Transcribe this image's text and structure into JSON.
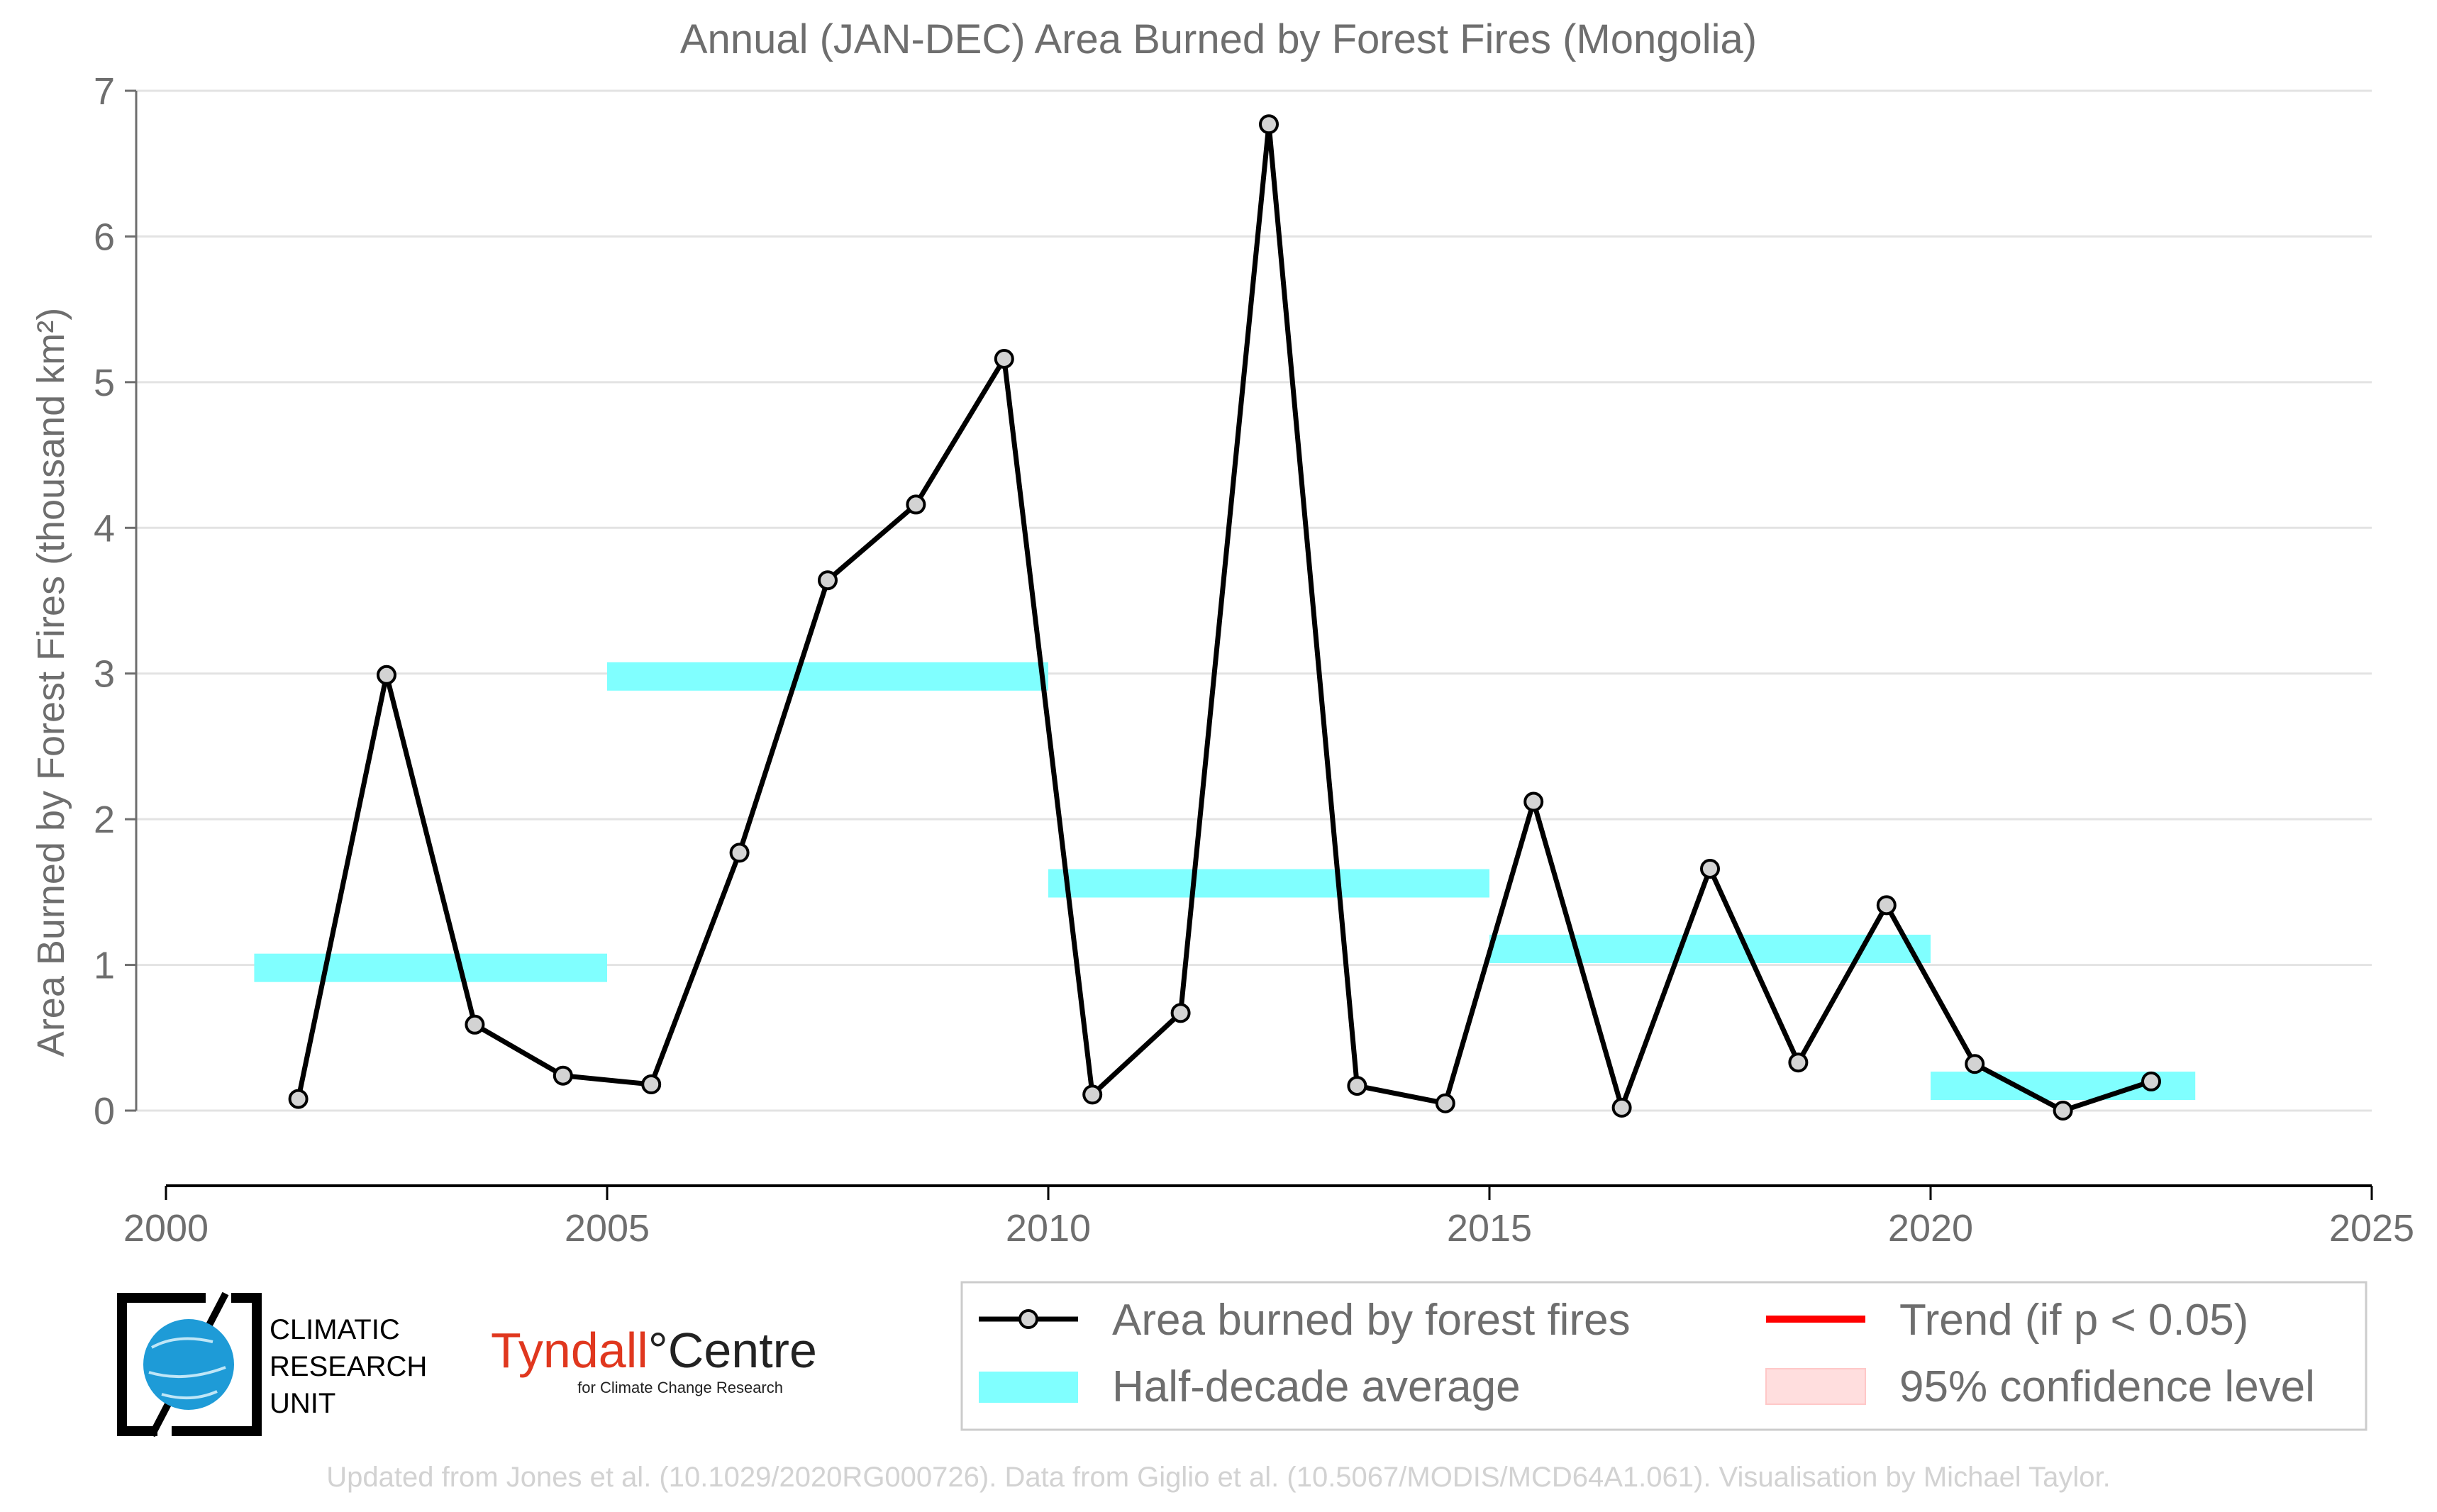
{
  "chart_data": {
    "type": "line",
    "title": "Annual (JAN-DEC) Area Burned by Forest Fires (Mongolia)",
    "xlabel": "",
    "ylabel": "Area Burned by Forest Fires (thousand km²)",
    "xlim": [
      2000,
      2025
    ],
    "ylim": [
      -0.5,
      7
    ],
    "xticks": [
      2000,
      2005,
      2010,
      2015,
      2020,
      2025
    ],
    "yticks": [
      0,
      1,
      2,
      3,
      4,
      5,
      6,
      7
    ],
    "grid": "horizontal",
    "series": [
      {
        "name": "Area burned by forest fires",
        "color": "#000000",
        "x": [
          2001.5,
          2002.5,
          2003.5,
          2004.5,
          2005.5,
          2006.5,
          2007.5,
          2008.5,
          2009.5,
          2010.5,
          2011.5,
          2012.5,
          2013.5,
          2014.5,
          2015.5,
          2016.5,
          2017.5,
          2018.5,
          2019.5,
          2020.5,
          2021.5,
          2022.5
        ],
        "values": [
          0.08,
          2.99,
          0.59,
          0.24,
          0.18,
          1.77,
          3.64,
          4.16,
          5.16,
          0.11,
          0.67,
          6.77,
          0.17,
          0.05,
          2.12,
          0.02,
          1.66,
          0.33,
          1.41,
          0.32,
          0.0,
          0.2
        ]
      },
      {
        "name": "Half-decade average",
        "color": "#80ffff",
        "segments": [
          {
            "x": [
              2001,
              2005
            ],
            "value": 0.98
          },
          {
            "x": [
              2005,
              2010
            ],
            "value": 2.98
          },
          {
            "x": [
              2010,
              2015
            ],
            "value": 1.56
          },
          {
            "x": [
              2015,
              2020
            ],
            "value": 1.11
          },
          {
            "x": [
              2020,
              2023
            ],
            "value": 0.17
          }
        ]
      }
    ],
    "legend": {
      "placement": "bottom-right",
      "entries": [
        {
          "label": "Area burned by forest fires",
          "kind": "line-marker",
          "color": "#000000"
        },
        {
          "label": "Trend (if p < 0.05)",
          "kind": "line",
          "color": "#ff0000"
        },
        {
          "label": "Half-decade average",
          "kind": "patch",
          "color": "#80ffff"
        },
        {
          "label": "95% confidence level",
          "kind": "patch",
          "color": "#ffdede"
        }
      ]
    }
  },
  "logos": {
    "cru": [
      "CLIMATIC",
      "RESEARCH",
      "UNIT"
    ],
    "tyndall_name": "Tyndall",
    "tyndall_centre": "°Centre",
    "tyndall_sub": "for Climate Change Research"
  },
  "credit": "Updated from Jones et al. (10.1029/2020RG000726). Data from Giglio et al. (10.5067/MODIS/MCD64A1.061). Visualisation by Michael Taylor."
}
